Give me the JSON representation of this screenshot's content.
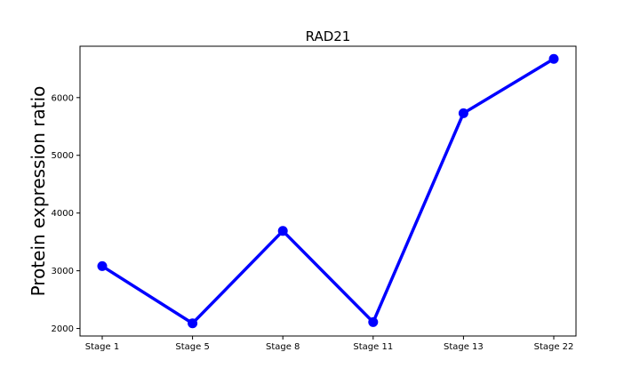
{
  "chart_data": {
    "type": "line",
    "title": "RAD21",
    "xlabel": "",
    "ylabel": "Protein expression ratio",
    "categories": [
      "Stage 1",
      "Stage 5",
      "Stage 8",
      "Stage 11",
      "Stage 13",
      "Stage 22"
    ],
    "series": [
      {
        "values": [
          3080,
          2090,
          3690,
          2110,
          5730,
          6670
        ]
      }
    ],
    "yticks": [
      2000,
      3000,
      4000,
      5000,
      6000
    ],
    "ylim": [
      1870,
      6890
    ],
    "grid": false,
    "line_color": "#0000ff"
  }
}
